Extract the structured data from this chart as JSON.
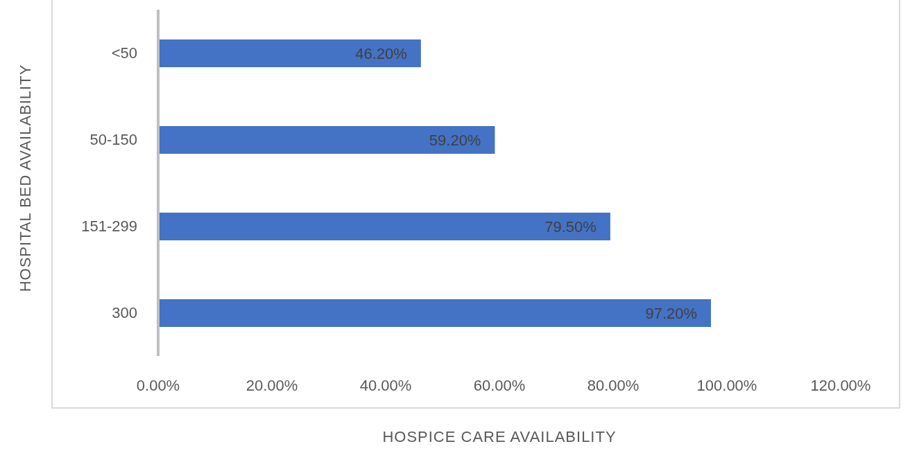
{
  "chart_data": {
    "type": "bar",
    "orientation": "horizontal",
    "xlabel": "HOSPICE CARE AVAILABILITY",
    "ylabel": "HOSPITAL BED AVAILABILITY",
    "categories": [
      "<50",
      "50-150",
      "151-299",
      "300"
    ],
    "values": [
      46.2,
      59.2,
      79.5,
      97.2
    ],
    "value_labels": [
      "46.20%",
      "59.20%",
      "79.50%",
      "97.20%"
    ],
    "color": "#4472c4",
    "xlim": [
      0,
      120
    ],
    "xticks": [
      {
        "value": 0,
        "label": "0.00%"
      },
      {
        "value": 20,
        "label": "20.00%"
      },
      {
        "value": 40,
        "label": "40.00%"
      },
      {
        "value": 60,
        "label": "60.00%"
      },
      {
        "value": 80,
        "label": "80.00%"
      },
      {
        "value": 100,
        "label": "100.00%"
      },
      {
        "value": 120,
        "label": "120.00%"
      }
    ],
    "grid": false
  }
}
